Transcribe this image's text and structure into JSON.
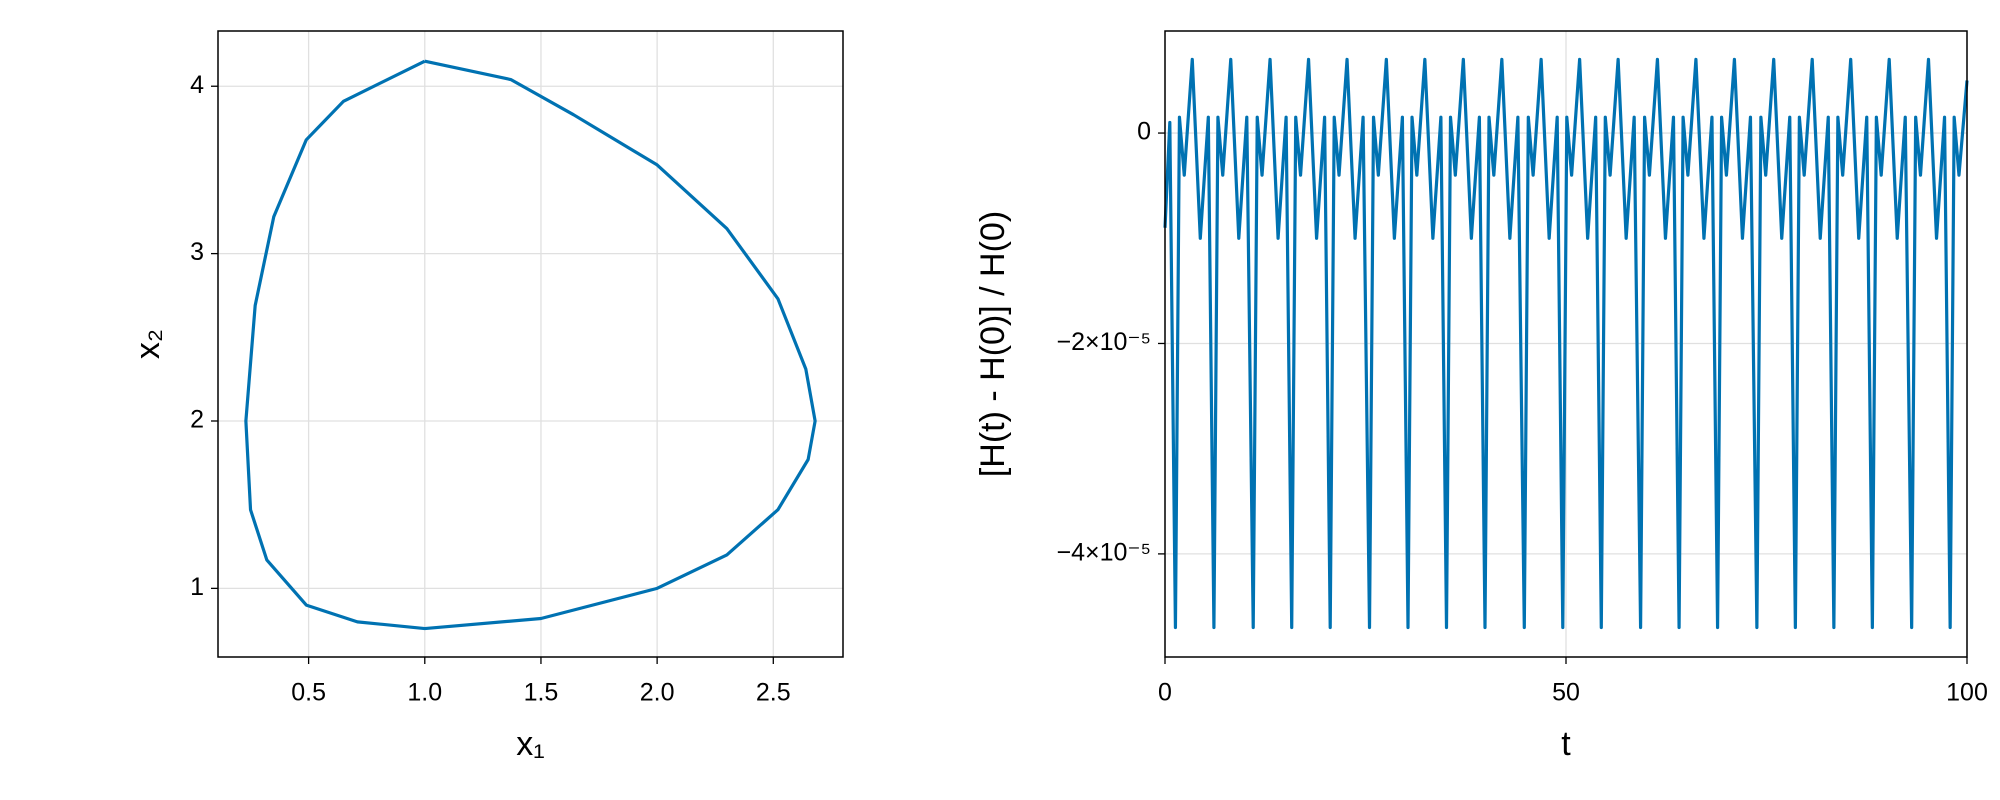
{
  "chart_data": [
    {
      "type": "line",
      "x_label": "x₁",
      "y_label": "x₂",
      "x": [
        1.0,
        0.65,
        0.49,
        0.35,
        0.27,
        0.23,
        0.25,
        0.32,
        0.49,
        0.71,
        1.0,
        1.5,
        2.0,
        2.3,
        2.52,
        2.65,
        2.68,
        2.64,
        2.52,
        2.3,
        2.0,
        1.64,
        1.37,
        1.0
      ],
      "series": [
        {
          "color": "#0072b2",
          "values": [
            4.15,
            3.91,
            3.68,
            3.22,
            2.69,
            2.0,
            1.47,
            1.17,
            0.9,
            0.8,
            0.76,
            0.82,
            1.0,
            1.2,
            1.47,
            1.77,
            2.0,
            2.31,
            2.73,
            3.15,
            3.53,
            3.83,
            4.04,
            4.15
          ]
        }
      ],
      "xlim": [
        0.11,
        2.8
      ],
      "ylim": [
        0.59,
        4.33
      ],
      "xticks": [
        0.5,
        {
          "value": 1.0,
          "label": "1.0"
        },
        1.5,
        {
          "value": 2.0,
          "label": "2.0"
        },
        2.5
      ],
      "yticks": [
        1,
        2,
        3,
        4
      ],
      "grid": true
    },
    {
      "type": "line",
      "x_label": "t",
      "y_label": "[H(t) - H(0)] / H(0)",
      "x": [
        0,
        0.6,
        1.3,
        1.8,
        2.4,
        3.4,
        4.4,
        5.4,
        6.1,
        6.6,
        7.2,
        8.2,
        9.2,
        10.2,
        11.0,
        11.5,
        12.1,
        13.1,
        14.1,
        15.1,
        15.8,
        16.3,
        16.9,
        17.9,
        18.9,
        19.9,
        20.6,
        21.1,
        21.7,
        22.7,
        23.7,
        24.7,
        25.5,
        26.0,
        26.6,
        27.6,
        28.6,
        29.6,
        30.3,
        30.8,
        31.4,
        32.4,
        33.4,
        34.4,
        35.1,
        35.6,
        36.2,
        37.2,
        38.2,
        39.2,
        39.9,
        40.4,
        41.0,
        42.0,
        43.0,
        44.0,
        44.8,
        45.3,
        45.9,
        46.9,
        47.9,
        48.9,
        49.6,
        50.1,
        50.7,
        51.7,
        52.7,
        53.7,
        54.4,
        54.9,
        55.5,
        56.5,
        57.5,
        58.5,
        59.3,
        59.8,
        60.4,
        61.4,
        62.4,
        63.4,
        64.1,
        64.6,
        65.2,
        66.2,
        67.2,
        68.2,
        68.9,
        69.4,
        70.0,
        71.0,
        72.0,
        73.0,
        73.8,
        74.3,
        74.9,
        75.9,
        76.9,
        77.9,
        78.6,
        79.1,
        79.7,
        80.7,
        81.7,
        82.7,
        83.4,
        83.9,
        84.5,
        85.5,
        86.5,
        87.5,
        88.2,
        88.7,
        89.3,
        90.3,
        91.3,
        92.3,
        93.1,
        93.6,
        94.2,
        95.2,
        96.2,
        97.2,
        97.9,
        98.4,
        99.0,
        100
      ],
      "series": [
        {
          "color": "#0072b2",
          "values": [
            -9e-06,
            1e-06,
            -4.7e-05,
            1.5e-06,
            -4e-06,
            7e-06,
            -1e-05,
            1.5e-06,
            -4.7e-05,
            1.5e-06,
            -4e-06,
            7e-06,
            -1e-05,
            1.5e-06,
            -4.7e-05,
            1.5e-06,
            -4e-06,
            7e-06,
            -1e-05,
            1.5e-06,
            -4.7e-05,
            1.5e-06,
            -4e-06,
            7e-06,
            -1e-05,
            1.5e-06,
            -4.7e-05,
            1.5e-06,
            -4e-06,
            7e-06,
            -1e-05,
            1.5e-06,
            -4.7e-05,
            1.5e-06,
            -4e-06,
            7e-06,
            -1e-05,
            1.5e-06,
            -4.7e-05,
            1.5e-06,
            -4e-06,
            7e-06,
            -1e-05,
            1.5e-06,
            -4.7e-05,
            1.5e-06,
            -4e-06,
            7e-06,
            -1e-05,
            1.5e-06,
            -4.7e-05,
            1.5e-06,
            -4e-06,
            7e-06,
            -1e-05,
            1.5e-06,
            -4.7e-05,
            1.5e-06,
            -4e-06,
            7e-06,
            -1e-05,
            1.5e-06,
            -4.7e-05,
            1.5e-06,
            -4e-06,
            7e-06,
            -1e-05,
            1.5e-06,
            -4.7e-05,
            1.5e-06,
            -4e-06,
            7e-06,
            -1e-05,
            1.5e-06,
            -4.7e-05,
            1.5e-06,
            -4e-06,
            7e-06,
            -1e-05,
            1.5e-06,
            -4.7e-05,
            1.5e-06,
            -4e-06,
            7e-06,
            -1e-05,
            1.5e-06,
            -4.7e-05,
            1.5e-06,
            -4e-06,
            7e-06,
            -1e-05,
            1.5e-06,
            -4.7e-05,
            1.5e-06,
            -4e-06,
            7e-06,
            -1e-05,
            1.5e-06,
            -4.7e-05,
            1.5e-06,
            -4e-06,
            7e-06,
            -1e-05,
            1.5e-06,
            -4.7e-05,
            1.5e-06,
            -4e-06,
            7e-06,
            -1e-05,
            1.5e-06,
            -4.7e-05,
            1.5e-06,
            -4e-06,
            7e-06,
            -1e-05,
            1.5e-06,
            -4.7e-05,
            1.5e-06,
            -4e-06,
            7e-06,
            -1e-05,
            1.5e-06,
            -4.7e-05,
            1.5e-06,
            -4e-06,
            5e-06
          ]
        }
      ],
      "xlim": [
        0,
        100
      ],
      "ylim": [
        -4.98e-05,
        9.7e-06
      ],
      "xticks": [
        0,
        50,
        100
      ],
      "yticks": [
        {
          "value": -4e-05,
          "label": "−4×10⁻⁵"
        },
        {
          "value": -2e-05,
          "label": "−2×10⁻⁵"
        },
        0
      ],
      "grid": true
    }
  ]
}
